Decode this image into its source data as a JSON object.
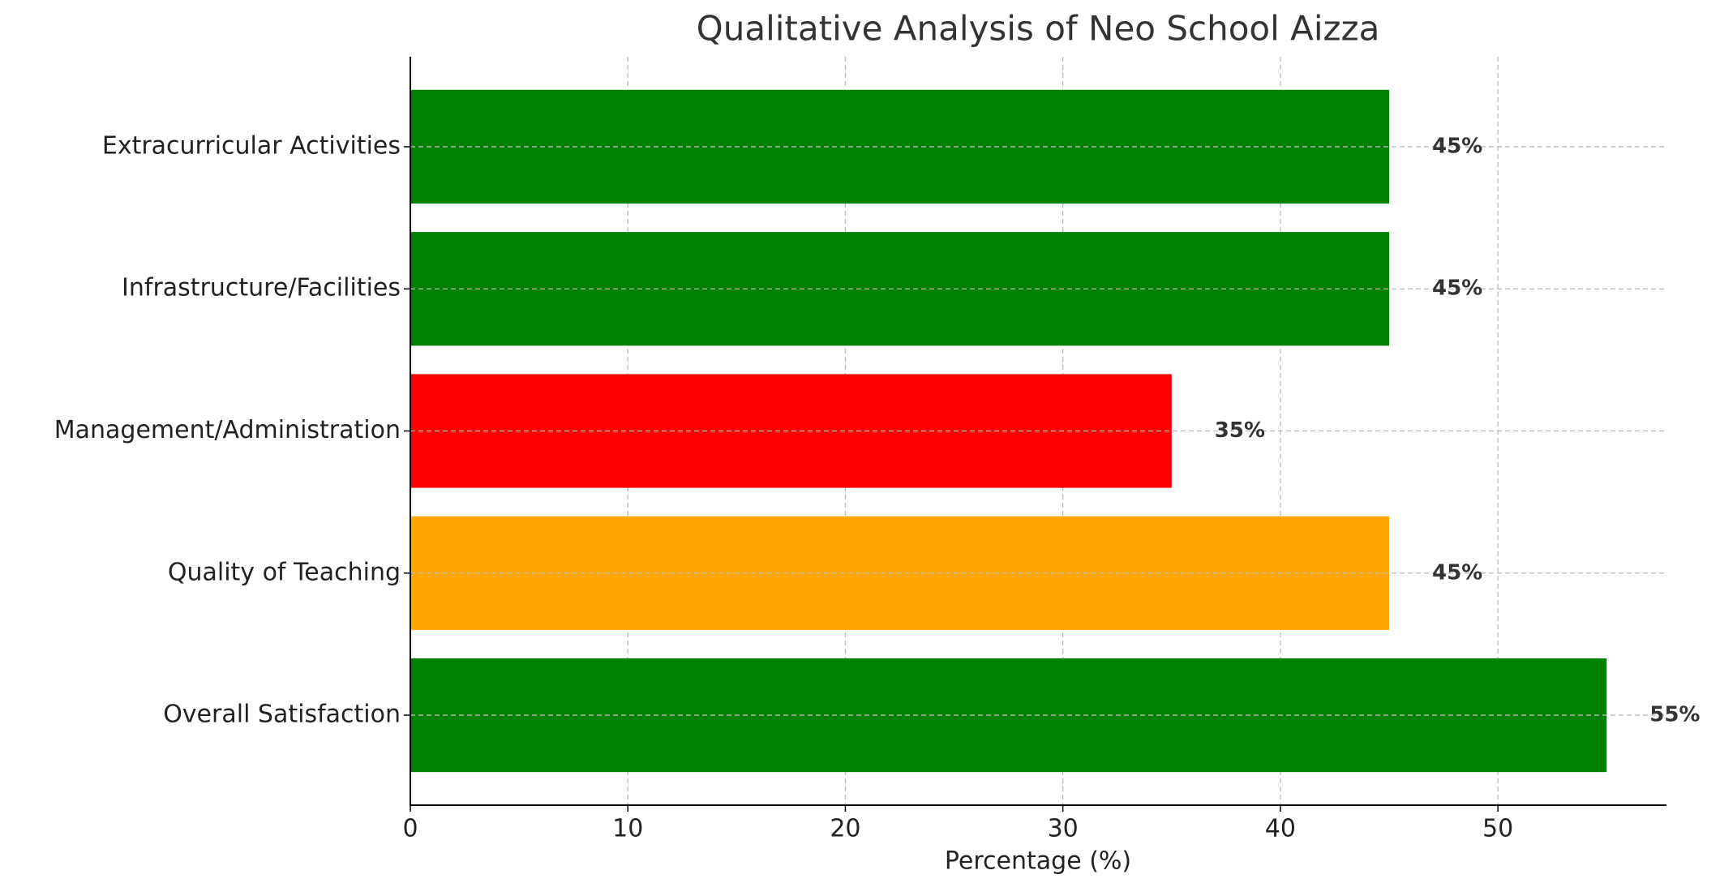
{
  "chart_data": {
    "type": "bar",
    "orientation": "horizontal",
    "title": "Qualitative Analysis of Neo School Aizza",
    "x_label": "Percentage (%)",
    "categories": [
      "Overall Satisfaction",
      "Quality of Teaching",
      "Management/Administration",
      "Infrastructure/Facilities",
      "Extracurricular Activities"
    ],
    "values": [
      55,
      45,
      35,
      45,
      45
    ],
    "value_labels": [
      "55%",
      "45%",
      "35%",
      "45%",
      "45%"
    ],
    "colors": [
      "#008000",
      "#ffa500",
      "#ff0000",
      "#008000",
      "#008000"
    ],
    "xlim": [
      0,
      57.75
    ],
    "xticks": [
      0,
      10,
      20,
      30,
      40,
      50
    ],
    "grid": true
  }
}
